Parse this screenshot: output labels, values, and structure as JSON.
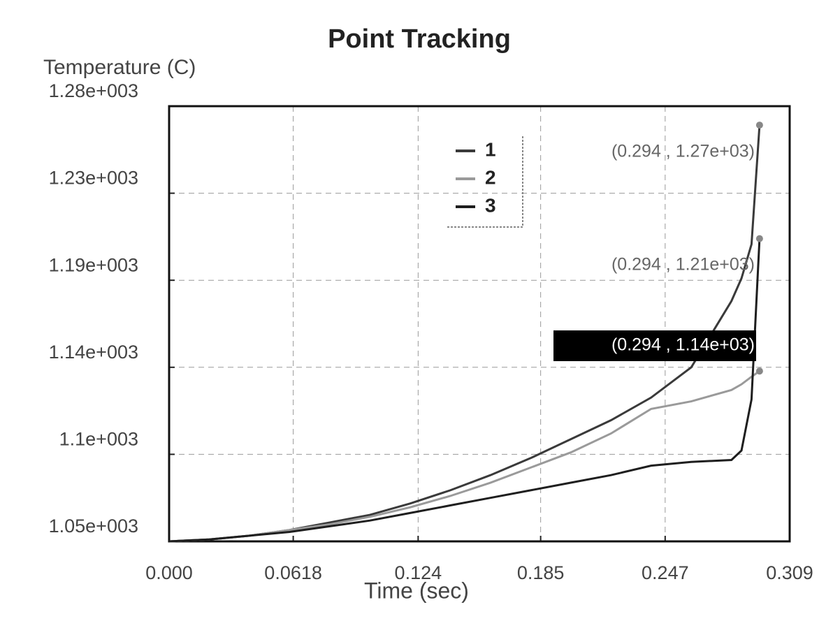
{
  "chart_data": {
    "type": "line",
    "title": "Point Tracking",
    "y_label": "Temperature (C)",
    "x_label": "Time (sec)",
    "x": [
      0,
      0.02,
      0.04,
      0.06,
      0.08,
      0.1,
      0.12,
      0.14,
      0.16,
      0.18,
      0.2,
      0.22,
      0.24,
      0.26,
      0.28,
      0.285,
      0.29,
      0.294
    ],
    "series": [
      {
        "name": "1",
        "color": "#3a3a3a",
        "values": [
          1050,
          1051,
          1053,
          1056,
          1060,
          1064,
          1070,
          1077,
          1085,
          1094,
          1104,
          1114,
          1126,
          1142,
          1177,
          1189,
          1207,
          1270
        ]
      },
      {
        "name": "2",
        "color": "#9a9a9a",
        "values": [
          1050,
          1051,
          1053,
          1056,
          1059,
          1063,
          1068,
          1074,
          1081,
          1089,
          1097,
          1107,
          1120,
          1124,
          1130,
          1133,
          1137,
          1140
        ]
      },
      {
        "name": "3",
        "color": "#1e1e1e",
        "values": [
          1050,
          1051,
          1053,
          1055,
          1058,
          1061,
          1065,
          1069,
          1073,
          1077,
          1081,
          1085,
          1090,
          1092,
          1093,
          1098,
          1125,
          1210
        ]
      }
    ],
    "annotations": [
      "(0.294 , 1.27e+03)",
      "(0.294 , 1.21e+03)",
      "(0.294 , 1.14e+03)"
    ],
    "xlim": [
      0,
      0.309
    ],
    "xticks": [
      {
        "value": 0,
        "label": "0.000"
      },
      0.0618,
      0.124,
      0.185,
      0.247,
      0.309
    ],
    "ylim": [
      1050,
      1280
    ],
    "yticks": [
      {
        "value": 1050,
        "label": "1.05e+003"
      },
      {
        "value": 1096,
        "label": "1.1e+003"
      },
      {
        "value": 1142,
        "label": "1.14e+003"
      },
      {
        "value": 1188,
        "label": "1.19e+003"
      },
      {
        "value": 1234,
        "label": "1.23e+003"
      },
      {
        "value": 1280,
        "label": "1.28e+003"
      }
    ],
    "grid": true
  }
}
